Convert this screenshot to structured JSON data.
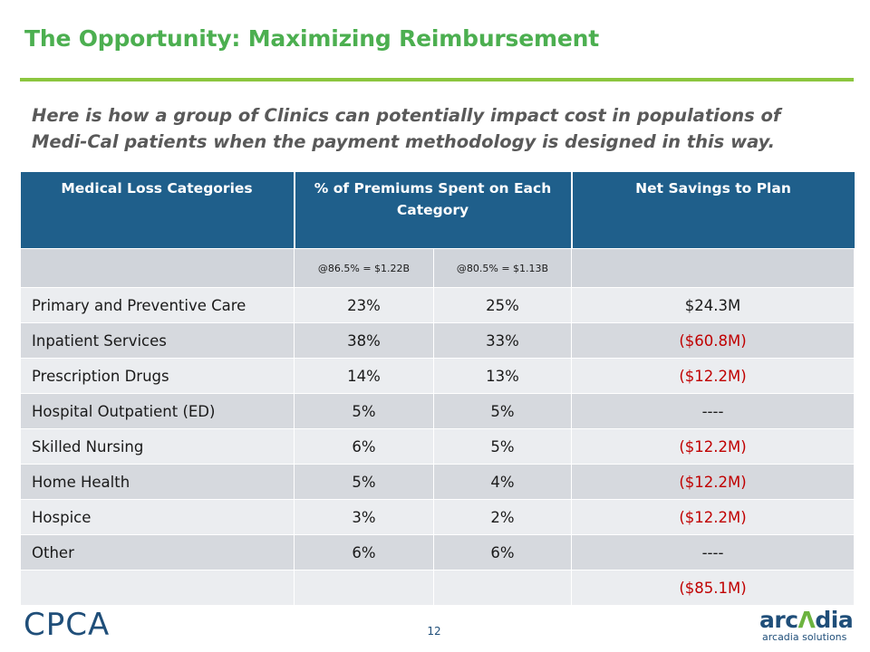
{
  "title": "The Opportunity: Maximizing Reimbursement",
  "subtitle": "Here is how a group of Clinics can potentially impact cost in populations of Medi-Cal patients when the payment methodology is designed in this way.",
  "colors": {
    "title_green": "#4caf50",
    "rule_green": "#8cc63f",
    "header_blue": "#1f5f8b",
    "negative_red": "#c00000"
  },
  "table": {
    "headers": [
      "Medical Loss Categories",
      "% of Premiums Spent on Each Category",
      "Net Savings to Plan"
    ],
    "subheaders": [
      "@86.5% = $1.22B",
      "@80.5% = $1.13B"
    ],
    "rows": [
      {
        "category": "Primary and Preventive Care",
        "pct_a": "23%",
        "pct_b": "25%",
        "savings": "$24.3M"
      },
      {
        "category": "Inpatient Services",
        "pct_a": "38%",
        "pct_b": "33%",
        "savings": "($60.8M)"
      },
      {
        "category": "Prescription Drugs",
        "pct_a": "14%",
        "pct_b": "13%",
        "savings": "($12.2M)"
      },
      {
        "category": "Hospital Outpatient (ED)",
        "pct_a": "5%",
        "pct_b": "5%",
        "savings": "----"
      },
      {
        "category": "Skilled Nursing",
        "pct_a": "6%",
        "pct_b": "5%",
        "savings": "($12.2M)"
      },
      {
        "category": "Home Health",
        "pct_a": "5%",
        "pct_b": "4%",
        "savings": "($12.2M)"
      },
      {
        "category": "Hospice",
        "pct_a": "3%",
        "pct_b": "2%",
        "savings": "($12.2M)"
      },
      {
        "category": "Other",
        "pct_a": "6%",
        "pct_b": "6%",
        "savings": "----"
      }
    ],
    "total": "($85.1M)"
  },
  "footer": {
    "left_logo_text": "CPCA",
    "page_number": "12",
    "right_logo_word_a": "arc",
    "right_logo_word_b": "dia",
    "right_logo_tagline": "arcadia solutions"
  }
}
